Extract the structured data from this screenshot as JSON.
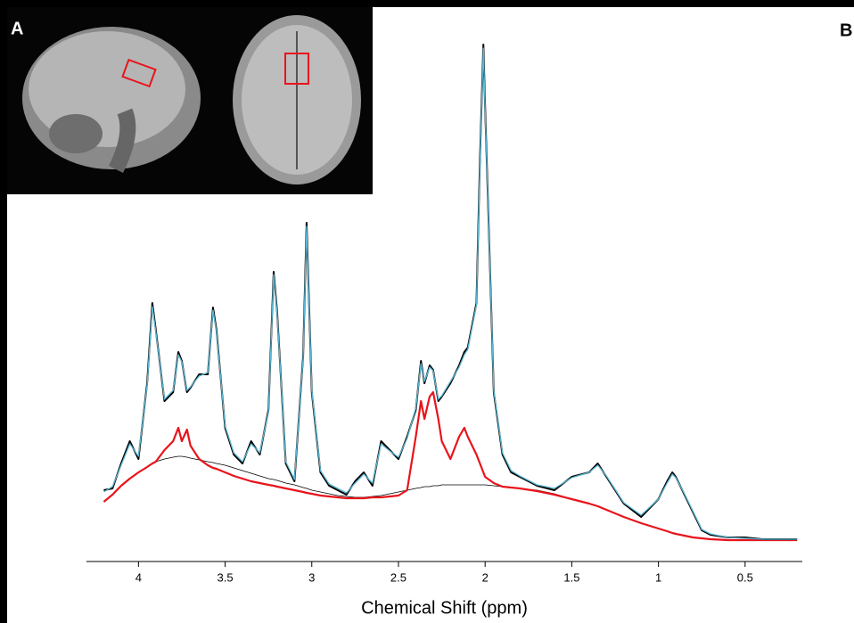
{
  "chart_data": {
    "type": "line",
    "annotations": [
      "A",
      "B"
    ],
    "x_label": "Chemical Shift (ppm)",
    "x": [
      4.2,
      4.15,
      4.1,
      4.05,
      4.0,
      3.95,
      3.92,
      3.9,
      3.85,
      3.8,
      3.77,
      3.75,
      3.72,
      3.7,
      3.65,
      3.6,
      3.57,
      3.55,
      3.5,
      3.45,
      3.4,
      3.35,
      3.3,
      3.25,
      3.22,
      3.2,
      3.15,
      3.1,
      3.05,
      3.03,
      3.0,
      2.95,
      2.9,
      2.85,
      2.8,
      2.75,
      2.7,
      2.65,
      2.6,
      2.55,
      2.5,
      2.45,
      2.4,
      2.37,
      2.35,
      2.32,
      2.3,
      2.27,
      2.25,
      2.2,
      2.15,
      2.12,
      2.1,
      2.05,
      2.03,
      2.01,
      2.0,
      1.95,
      1.9,
      1.85,
      1.8,
      1.7,
      1.6,
      1.5,
      1.4,
      1.35,
      1.3,
      1.2,
      1.1,
      1.0,
      0.95,
      0.92,
      0.9,
      0.85,
      0.8,
      0.75,
      0.7,
      0.6,
      0.5,
      0.4,
      0.3,
      0.2
    ],
    "xlim": [
      4.3,
      0.17
    ],
    "xticks": [
      4,
      3.5,
      3,
      2.5,
      2,
      1.5,
      1,
      0.5
    ],
    "ylim": [
      0,
      600
    ],
    "series": [
      {
        "color": "#000000",
        "width": 0.8,
        "values": [
          67,
          75,
          85,
          93,
          100,
          106,
          110,
          112,
          115,
          117,
          118,
          118,
          117,
          116,
          114,
          112,
          111,
          110,
          108,
          105,
          102,
          99,
          96,
          93,
          92,
          91,
          88,
          86,
          83,
          82,
          80,
          78,
          76,
          74,
          73,
          72,
          72,
          73,
          74,
          76,
          78,
          80,
          82,
          83,
          84,
          84,
          85,
          85,
          86,
          86,
          86,
          86,
          86,
          86,
          86,
          86,
          86,
          85,
          84,
          83,
          82,
          80,
          76,
          70,
          65,
          62,
          58,
          50,
          43,
          37,
          34,
          32,
          31,
          29,
          27,
          26,
          25,
          24,
          24,
          24,
          24,
          24
        ]
      },
      {
        "color": "#e8141b",
        "width": 2.2,
        "values": [
          67,
          75,
          85,
          93,
          100,
          106,
          110,
          112,
          125,
          135,
          150,
          135,
          148,
          130,
          115,
          108,
          105,
          104,
          100,
          96,
          93,
          90,
          88,
          86,
          85,
          84,
          82,
          80,
          78,
          77,
          76,
          74,
          73,
          72,
          71,
          71,
          71,
          72,
          72,
          73,
          74,
          80,
          140,
          180,
          160,
          185,
          190,
          160,
          135,
          115,
          140,
          150,
          140,
          120,
          110,
          100,
          95,
          88,
          84,
          83,
          82,
          79,
          75,
          70,
          65,
          62,
          58,
          50,
          43,
          37,
          34,
          32,
          31,
          29,
          27,
          26,
          25,
          24,
          24,
          24,
          24,
          24
        ]
      },
      {
        "color": "#000000",
        "width": 2,
        "values": [
          80,
          82,
          110,
          135,
          115,
          200,
          290,
          260,
          180,
          190,
          235,
          225,
          190,
          195,
          210,
          210,
          285,
          260,
          150,
          120,
          110,
          135,
          120,
          170,
          325,
          280,
          110,
          90,
          230,
          380,
          190,
          100,
          85,
          80,
          75,
          90,
          100,
          85,
          135,
          125,
          115,
          140,
          170,
          225,
          200,
          220,
          215,
          180,
          185,
          200,
          220,
          235,
          240,
          290,
          450,
          580,
          510,
          190,
          120,
          100,
          95,
          85,
          80,
          95,
          100,
          110,
          95,
          65,
          50,
          70,
          90,
          100,
          95,
          75,
          55,
          35,
          30,
          27,
          27,
          25,
          25,
          25
        ]
      },
      {
        "color": "#5bb8d4",
        "width": 1.3,
        "values": [
          78,
          84,
          108,
          132,
          118,
          198,
          286,
          258,
          182,
          192,
          232,
          224,
          192,
          196,
          208,
          212,
          282,
          258,
          152,
          122,
          112,
          132,
          122,
          168,
          322,
          278,
          112,
          92,
          228,
          376,
          192,
          102,
          87,
          82,
          77,
          88,
          98,
          88,
          132,
          124,
          117,
          138,
          172,
          222,
          202,
          218,
          214,
          182,
          186,
          202,
          218,
          232,
          238,
          288,
          446,
          576,
          508,
          192,
          122,
          102,
          96,
          86,
          82,
          94,
          100,
          108,
          96,
          66,
          52,
          70,
          88,
          98,
          94,
          76,
          56,
          36,
          31,
          27,
          26,
          25,
          25,
          25
        ]
      }
    ]
  }
}
